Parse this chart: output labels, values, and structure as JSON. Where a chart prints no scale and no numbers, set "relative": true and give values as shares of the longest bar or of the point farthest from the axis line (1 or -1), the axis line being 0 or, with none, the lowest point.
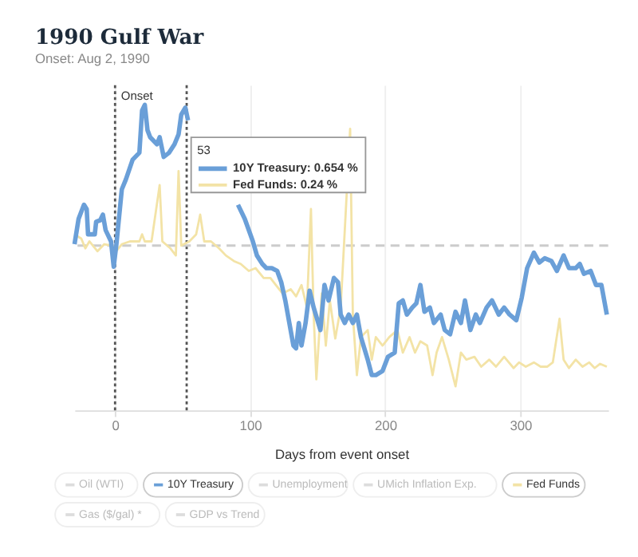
{
  "chart_data": {
    "type": "line",
    "title": "1990 Gulf War",
    "subtitle": "Onset: Aug 2, 1990",
    "xlabel": "Days from event onset",
    "relative": true,
    "xlim": [
      -30,
      365
    ],
    "xticks": [
      0,
      100,
      200,
      300
    ],
    "grid": "x",
    "tick_labels": "x",
    "legend": "bottom",
    "series": [
      {
        "name": "10Y Treasury",
        "color": "#6a9fd8",
        "x": [
          -30,
          -27,
          -23,
          -21,
          -20,
          -15,
          -14,
          -11,
          -9,
          -7,
          -3,
          -1,
          1,
          5,
          8,
          13,
          18,
          20,
          22,
          24,
          26,
          31,
          33,
          36,
          40,
          44,
          47,
          49,
          52,
          54,
          56,
          91,
          96,
          102,
          105,
          109,
          112,
          116,
          120,
          123,
          126,
          129,
          132,
          134,
          136,
          138,
          141,
          144,
          147,
          152,
          155,
          158,
          162,
          165,
          167,
          170,
          173,
          176,
          179,
          182,
          187,
          190,
          193,
          198,
          202,
          207,
          210,
          213,
          216,
          220,
          223,
          226,
          229,
          233,
          236,
          241,
          244,
          248,
          252,
          256,
          259,
          263,
          267,
          270,
          275,
          279,
          284,
          288,
          292,
          297,
          301,
          305,
          310,
          314,
          318,
          323,
          327,
          332,
          336,
          341,
          344,
          347,
          352,
          356,
          360,
          364
        ],
        "values": [
          0.01,
          0.19,
          0.29,
          0.26,
          0.08,
          0.08,
          0.17,
          0.18,
          0.22,
          0.11,
          0.03,
          -0.15,
          0.01,
          0.4,
          0.47,
          0.61,
          0.66,
          0.96,
          1.0,
          0.82,
          0.77,
          0.72,
          0.77,
          0.63,
          0.66,
          0.72,
          0.79,
          0.93,
          0.98,
          0.89,
          null,
          0.29,
          0.19,
          0.03,
          -0.07,
          -0.13,
          -0.16,
          -0.16,
          -0.18,
          -0.26,
          -0.39,
          -0.55,
          -0.71,
          -0.73,
          -0.55,
          -0.71,
          -0.55,
          -0.32,
          -0.44,
          -0.6,
          -0.28,
          -0.39,
          -0.23,
          -0.26,
          -0.49,
          -0.55,
          -0.49,
          -0.55,
          -0.49,
          -0.65,
          -0.81,
          -0.92,
          -0.92,
          -0.89,
          -0.79,
          -0.76,
          -0.41,
          -0.39,
          -0.49,
          -0.44,
          -0.41,
          -0.28,
          -0.47,
          -0.44,
          -0.55,
          -0.49,
          -0.6,
          -0.63,
          -0.47,
          -0.55,
          -0.39,
          -0.6,
          -0.49,
          -0.55,
          -0.44,
          -0.39,
          -0.49,
          -0.44,
          -0.49,
          -0.53,
          -0.37,
          -0.16,
          -0.05,
          -0.12,
          -0.09,
          -0.11,
          -0.18,
          -0.07,
          -0.16,
          -0.16,
          -0.13,
          -0.2,
          -0.18,
          -0.28,
          -0.28,
          -0.49
        ]
      },
      {
        "name": "Fed Funds",
        "color": "#f3e3a6",
        "x": [
          -30,
          -25,
          -22,
          -19,
          -13,
          -8,
          -2,
          0,
          5,
          11,
          18,
          20,
          22,
          27,
          33,
          35,
          41,
          45,
          47,
          49,
          55,
          60,
          63,
          66,
          71,
          77,
          82,
          88,
          93,
          99,
          104,
          110,
          115,
          119,
          124,
          130,
          134,
          138,
          142,
          145,
          147,
          149,
          153,
          156,
          159,
          163,
          167,
          174,
          176,
          179,
          182,
          187,
          190,
          193,
          198,
          203,
          209,
          213,
          218,
          222,
          226,
          231,
          235,
          238,
          242,
          247,
          252,
          256,
          260,
          266,
          271,
          277,
          282,
          288,
          295,
          299,
          304,
          310,
          315,
          320,
          324,
          329,
          332,
          336,
          341,
          346,
          351,
          355,
          359,
          364
        ],
        "values": [
          0.08,
          0.05,
          -0.02,
          0.03,
          -0.04,
          0.01,
          0.0,
          -0.05,
          0.01,
          0.03,
          0.03,
          0.08,
          0.03,
          0.03,
          0.43,
          0.03,
          -0.02,
          -0.07,
          0.53,
          0.0,
          0.03,
          0.08,
          0.22,
          0.03,
          0.03,
          -0.02,
          -0.07,
          -0.11,
          -0.13,
          -0.18,
          -0.16,
          -0.23,
          -0.23,
          -0.28,
          -0.34,
          -0.31,
          -0.36,
          -0.28,
          -0.44,
          0.26,
          -0.49,
          -0.95,
          -0.34,
          -0.71,
          -0.39,
          -0.66,
          -0.44,
          0.83,
          -0.49,
          -0.92,
          -0.65,
          -0.6,
          -0.81,
          -0.65,
          -0.71,
          -0.65,
          -0.6,
          -0.76,
          -0.65,
          -0.76,
          -0.68,
          -0.71,
          -0.92,
          -0.76,
          -0.65,
          -0.81,
          -1.0,
          -0.76,
          -0.81,
          -0.79,
          -0.86,
          -0.81,
          -0.86,
          -0.79,
          -0.87,
          -0.83,
          -0.86,
          -0.83,
          -0.86,
          -0.86,
          -0.83,
          -0.52,
          -0.81,
          -0.87,
          -0.81,
          -0.86,
          -0.83,
          -0.87,
          -0.84,
          -0.86
        ]
      }
    ],
    "ref_lines": [
      {
        "axis": "x",
        "value": 0,
        "label": "Onset",
        "line_style": "dotted",
        "color": "#555555"
      },
      {
        "axis": "x",
        "value": 53,
        "label": null,
        "line_style": "dotted",
        "color": "#555555"
      },
      {
        "axis": "y",
        "value": 0,
        "label": null,
        "line_style": "dashed",
        "color": "#cccccc"
      }
    ],
    "annotations": [
      "53",
      "10Y Treasury: 0.654 %",
      "Fed Funds: 0.24 %",
      "Oil (WTI)",
      "Unemployment",
      "UMich Inflation Exp.",
      "Gas ($/gal) *",
      "GDP vs Trend"
    ]
  }
}
